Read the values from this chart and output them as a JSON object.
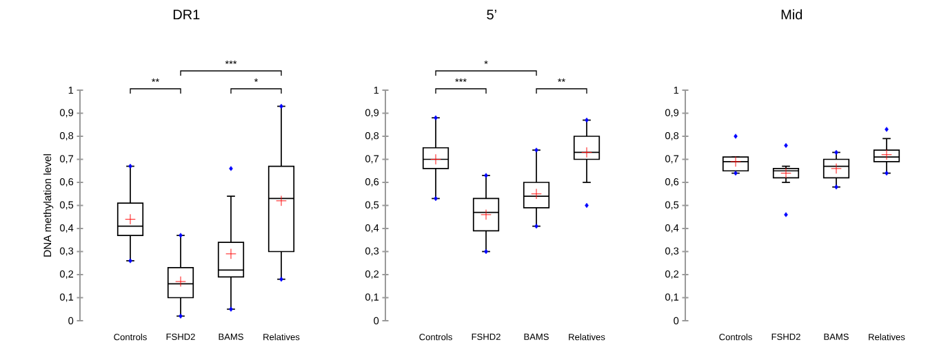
{
  "chart_data": [
    {
      "type": "box",
      "title": "DR1",
      "ylabel": "DNA methylation level",
      "categories": [
        "Controls",
        "FSHD2",
        "BAMS",
        "Relatives"
      ],
      "boxes": [
        {
          "low": 0.26,
          "q1": 0.37,
          "median": 0.41,
          "q3": 0.51,
          "high": 0.67,
          "mean": 0.44,
          "outliers": [
            0.67,
            0.26
          ]
        },
        {
          "low": 0.02,
          "q1": 0.1,
          "median": 0.16,
          "q3": 0.23,
          "high": 0.37,
          "mean": 0.17,
          "outliers": [
            0.37,
            0.02
          ]
        },
        {
          "low": 0.05,
          "q1": 0.19,
          "median": 0.22,
          "q3": 0.34,
          "high": 0.54,
          "mean": 0.29,
          "outliers": [
            0.66,
            0.05
          ]
        },
        {
          "low": 0.18,
          "q1": 0.3,
          "median": 0.53,
          "q3": 0.67,
          "high": 0.93,
          "mean": 0.52,
          "outliers": [
            0.93,
            0.18
          ]
        }
      ],
      "ylim": [
        0,
        1
      ],
      "yticks": [
        0,
        {
          "value": 0.1,
          "label": "0,1"
        },
        {
          "value": 0.2,
          "label": "0,2"
        },
        {
          "value": 0.3,
          "label": "0,3"
        },
        {
          "value": 0.4,
          "label": "0,4"
        },
        {
          "value": 0.5,
          "label": "0,5"
        },
        {
          "value": 0.6,
          "label": "0,6"
        },
        {
          "value": 0.7,
          "label": "0,7"
        },
        {
          "value": 0.8,
          "label": "0,8"
        },
        {
          "value": 0.9,
          "label": "0,9"
        },
        1
      ],
      "annotations": [
        "***",
        "**",
        "*"
      ]
    },
    {
      "type": "box",
      "title": "5’",
      "categories": [
        "Controls",
        "FSHD2",
        "BAMS",
        "Relatives"
      ],
      "boxes": [
        {
          "low": 0.53,
          "q1": 0.66,
          "median": 0.7,
          "q3": 0.75,
          "high": 0.88,
          "mean": 0.7,
          "outliers": [
            0.88,
            0.53
          ]
        },
        {
          "low": 0.3,
          "q1": 0.39,
          "median": 0.47,
          "q3": 0.53,
          "high": 0.63,
          "mean": 0.46,
          "outliers": [
            0.63,
            0.3
          ]
        },
        {
          "low": 0.41,
          "q1": 0.49,
          "median": 0.54,
          "q3": 0.6,
          "high": 0.74,
          "mean": 0.55,
          "outliers": [
            0.74,
            0.41
          ]
        },
        {
          "low": 0.6,
          "q1": 0.7,
          "median": 0.73,
          "q3": 0.8,
          "high": 0.87,
          "mean": 0.73,
          "outliers": [
            0.87,
            0.5
          ]
        }
      ],
      "ylim": [
        0,
        1
      ],
      "yticks": [
        0,
        {
          "value": 0.1,
          "label": "0,1"
        },
        {
          "value": 0.2,
          "label": "0,2"
        },
        {
          "value": 0.3,
          "label": "0,3"
        },
        {
          "value": 0.4,
          "label": "0,4"
        },
        {
          "value": 0.5,
          "label": "0,5"
        },
        {
          "value": 0.6,
          "label": "0,6"
        },
        {
          "value": 0.7,
          "label": "0,7"
        },
        {
          "value": 0.8,
          "label": "0,8"
        },
        {
          "value": 0.9,
          "label": "0,9"
        },
        1
      ],
      "annotations": [
        "*",
        "***",
        "**"
      ]
    },
    {
      "type": "box",
      "title": "Mid",
      "categories": [
        "Controls",
        "FSHD2",
        "BAMS",
        "Relatives"
      ],
      "boxes": [
        {
          "low": 0.64,
          "q1": 0.65,
          "median": 0.69,
          "q3": 0.71,
          "high": 0.71,
          "mean": 0.69,
          "outliers": [
            0.8,
            0.64
          ]
        },
        {
          "low": 0.6,
          "q1": 0.62,
          "median": 0.65,
          "q3": 0.66,
          "high": 0.67,
          "mean": 0.64,
          "outliers": [
            0.76,
            0.46
          ]
        },
        {
          "low": 0.58,
          "q1": 0.62,
          "median": 0.67,
          "q3": 0.7,
          "high": 0.73,
          "mean": 0.66,
          "outliers": [
            0.73,
            0.58
          ]
        },
        {
          "low": 0.64,
          "q1": 0.69,
          "median": 0.71,
          "q3": 0.74,
          "high": 0.79,
          "mean": 0.72,
          "outliers": [
            0.83,
            0.64
          ]
        }
      ],
      "ylim": [
        0,
        1
      ],
      "yticks": [
        0,
        {
          "value": 0.1,
          "label": "0,1"
        },
        {
          "value": 0.2,
          "label": "0,2"
        },
        {
          "value": 0.3,
          "label": "0,3"
        },
        {
          "value": 0.4,
          "label": "0,4"
        },
        {
          "value": 0.5,
          "label": "0,5"
        },
        {
          "value": 0.6,
          "label": "0,6"
        },
        {
          "value": 0.7,
          "label": "0,7"
        },
        {
          "value": 0.8,
          "label": "0,8"
        },
        {
          "value": 0.9,
          "label": "0,9"
        },
        1
      ]
    }
  ]
}
